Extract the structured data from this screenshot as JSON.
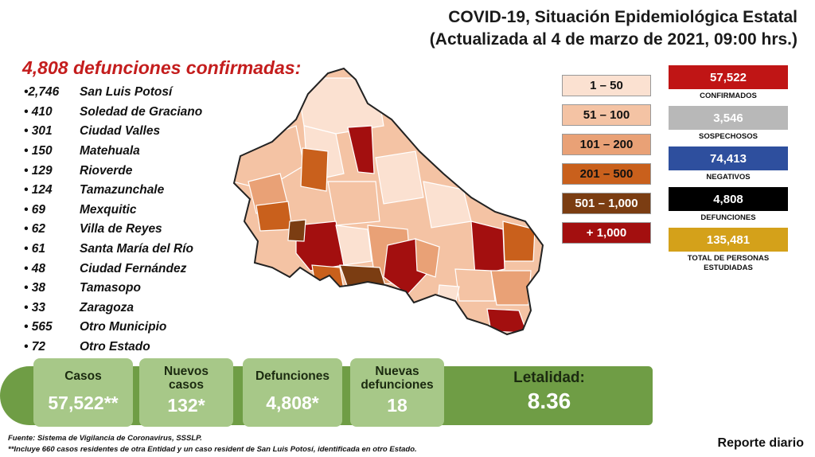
{
  "title": {
    "line1": "COVID-19, Situación Epidemiológica Estatal",
    "line2": "(Actualizada al 4 de marzo de 2021, 09:00 hrs.)"
  },
  "deaths_heading": "4,808 defunciones confirmadas:",
  "municipalities": [
    {
      "count": "•2,746",
      "name": "San Luis Potosí"
    },
    {
      "count": "• 410",
      "name": "Soledad de Graciano"
    },
    {
      "count": "• 301",
      "name": "Ciudad Valles"
    },
    {
      "count": "• 150",
      "name": "Matehuala"
    },
    {
      "count": "• 129",
      "name": "Rioverde"
    },
    {
      "count": "• 124",
      "name": "Tamazunchale"
    },
    {
      "count": "• 69",
      "name": "Mexquitic"
    },
    {
      "count": "• 62",
      "name": "Villa de Reyes"
    },
    {
      "count": "• 61",
      "name": "Santa María del Río"
    },
    {
      "count": "• 48",
      "name": "Ciudad Fernández"
    },
    {
      "count": "• 38",
      "name": "Tamasopo"
    },
    {
      "count": "• 33",
      "name": "Zaragoza"
    },
    {
      "count": "• 565",
      "name": "Otro Municipio"
    },
    {
      "count": "• 72",
      "name": "Otro Estado"
    }
  ],
  "legend": [
    {
      "label": "1 – 50",
      "color": "#fbe1d1",
      "text_color": "#111111"
    },
    {
      "label": "51 – 100",
      "color": "#f4c3a4",
      "text_color": "#111111"
    },
    {
      "label": "101 – 200",
      "color": "#e9a176",
      "text_color": "#111111"
    },
    {
      "label": "201 – 500",
      "color": "#c9601c",
      "text_color": "#111111"
    },
    {
      "label": "501 – 1,000",
      "color": "#7b3d12",
      "text_color": "#ffffff"
    },
    {
      "label": "+ 1,000",
      "color": "#a30f0f",
      "text_color": "#ffffff"
    }
  ],
  "stats": [
    {
      "value": "57,522",
      "label": "CONFIRMADOS",
      "color": "#c01515"
    },
    {
      "value": "3,546",
      "label": "SOSPECHOSOS",
      "color": "#b8b8b8"
    },
    {
      "value": "74,413",
      "label": "NEGATIVOS",
      "color": "#2e4f9e"
    },
    {
      "value": "4,808",
      "label": "DEFUNCIONES",
      "color": "#000000"
    },
    {
      "value": "135,481",
      "label": "TOTAL DE PERSONAS ESTUDIADAS",
      "color": "#d4a11a"
    }
  ],
  "summary": {
    "casos_label": "Casos",
    "casos_value": "57,522**",
    "nuevos_casos_label_1": "Nuevos",
    "nuevos_casos_label_2": "casos",
    "nuevos_casos_value": "132*",
    "defunciones_label": "Defunciones",
    "defunciones_value": "4,808*",
    "nuevas_def_label_1": "Nuevas",
    "nuevas_def_label_2": "defunciones",
    "nuevas_def_value": "18",
    "letalidad_label": "Letalidad:",
    "letalidad_value": "8.36"
  },
  "footnotes": {
    "source": "Fuente: Sistema de Vigilancia de Coronavirus, SSSLP.",
    "note": "**Incluye 660 casos residentes de otra Entidad y un caso resident de San Luis Potosí, identificada en otro Estado."
  },
  "report_label": "Reporte diario"
}
